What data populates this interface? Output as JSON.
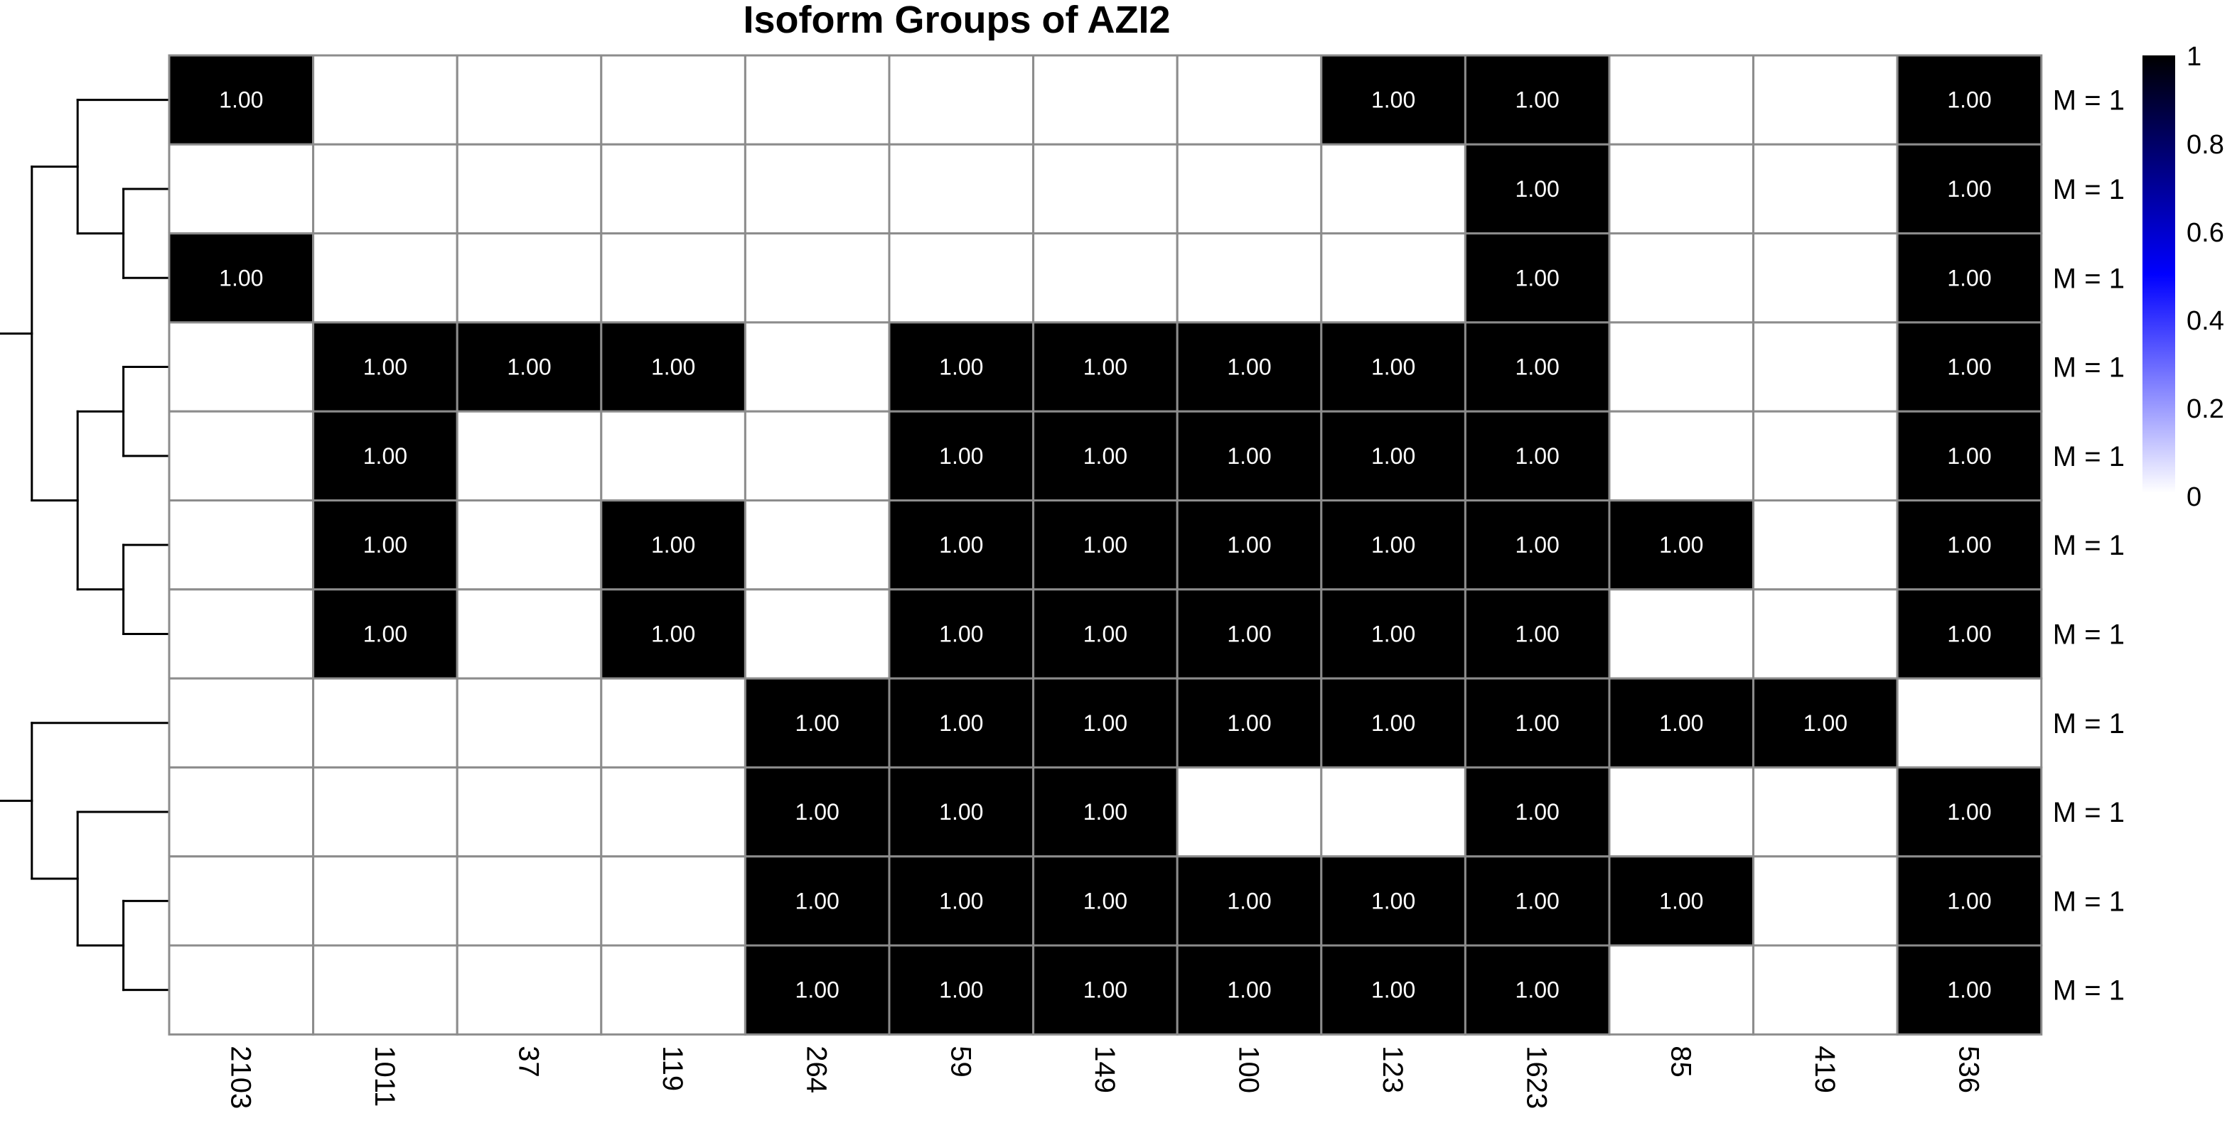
{
  "chart_data": {
    "type": "heatmap",
    "title": "Isoform Groups of AZI2",
    "columns": [
      "2103",
      "1011",
      "37",
      "119",
      "264",
      "59",
      "149",
      "100",
      "123",
      "1623",
      "85",
      "419",
      "536"
    ],
    "rows": [
      "M = 1",
      "M = 1",
      "M = 1",
      "M = 1",
      "M = 1",
      "M = 1",
      "M = 1",
      "M = 1",
      "M = 1",
      "M = 1",
      "M = 1"
    ],
    "cell_label_format": "1.00",
    "matrix": [
      [
        1,
        0,
        0,
        0,
        0,
        0,
        0,
        0,
        1,
        1,
        0,
        0,
        1
      ],
      [
        0,
        0,
        0,
        0,
        0,
        0,
        0,
        0,
        0,
        1,
        0,
        0,
        1
      ],
      [
        1,
        0,
        0,
        0,
        0,
        0,
        0,
        0,
        0,
        1,
        0,
        0,
        1
      ],
      [
        0,
        1,
        1,
        1,
        0,
        1,
        1,
        1,
        1,
        1,
        0,
        0,
        1
      ],
      [
        0,
        1,
        0,
        0,
        0,
        1,
        1,
        1,
        1,
        1,
        0,
        0,
        1
      ],
      [
        0,
        1,
        0,
        1,
        0,
        1,
        1,
        1,
        1,
        1,
        1,
        0,
        1
      ],
      [
        0,
        1,
        0,
        1,
        0,
        1,
        1,
        1,
        1,
        1,
        0,
        0,
        1
      ],
      [
        0,
        0,
        0,
        0,
        1,
        1,
        1,
        1,
        1,
        1,
        1,
        1,
        0
      ],
      [
        0,
        0,
        0,
        0,
        1,
        1,
        1,
        0,
        0,
        1,
        0,
        0,
        1
      ],
      [
        0,
        0,
        0,
        0,
        1,
        1,
        1,
        1,
        1,
        1,
        1,
        0,
        1
      ],
      [
        0,
        0,
        0,
        0,
        1,
        1,
        1,
        1,
        1,
        1,
        0,
        0,
        1
      ]
    ],
    "legend": {
      "ticks": [
        "1",
        "0.8",
        "0.6",
        "0.4",
        "0.2",
        "0"
      ],
      "colors": [
        "#ffffff",
        "#0000ff",
        "#000000"
      ],
      "range": [
        0,
        1
      ]
    },
    "dendrogram": {
      "tree": [
        [
          [
            0,
            [
              1,
              2
            ]
          ],
          [
            [
              3,
              4
            ],
            [
              5,
              6
            ]
          ]
        ],
        [
          7,
          [
            8,
            [
              9,
              10
            ]
          ]
        ]
      ]
    },
    "colors": {
      "on": "#000000",
      "off": "#ffffff",
      "grid": "#8c8c8c",
      "on_text": "#ffffff"
    }
  }
}
